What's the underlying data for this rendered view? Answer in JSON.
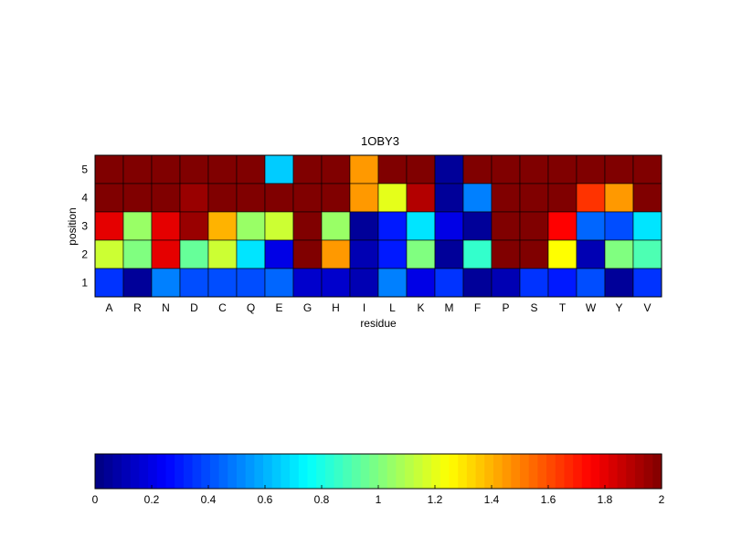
{
  "chart_data": {
    "type": "heatmap",
    "title": "1OBY3",
    "xlabel": "residue",
    "ylabel": "position",
    "x_categories": [
      "A",
      "R",
      "N",
      "D",
      "C",
      "Q",
      "E",
      "G",
      "H",
      "I",
      "L",
      "K",
      "M",
      "F",
      "P",
      "S",
      "T",
      "W",
      "Y",
      "V"
    ],
    "y_categories": [
      "5",
      "4",
      "3",
      "2",
      "1"
    ],
    "values": [
      [
        2.0,
        2.0,
        2.0,
        2.0,
        2.0,
        2.0,
        0.65,
        2.0,
        2.0,
        1.45,
        2.0,
        2.0,
        0.05,
        2.0,
        2.0,
        2.0,
        2.0,
        2.0,
        2.0,
        2.0
      ],
      [
        2.0,
        2.0,
        2.0,
        1.95,
        2.0,
        2.0,
        2.0,
        2.0,
        2.0,
        1.45,
        1.2,
        1.9,
        0.05,
        0.5,
        2.0,
        2.0,
        2.0,
        1.65,
        1.45,
        2.0
      ],
      [
        1.8,
        1.05,
        1.8,
        1.95,
        1.4,
        1.05,
        1.15,
        2.0,
        1.05,
        0.05,
        0.3,
        0.7,
        0.2,
        0.05,
        2.0,
        2.0,
        1.75,
        0.45,
        0.4,
        0.7
      ],
      [
        1.15,
        1.0,
        1.8,
        0.95,
        1.15,
        0.7,
        0.2,
        2.0,
        1.45,
        0.1,
        0.3,
        1.0,
        0.05,
        0.85,
        2.0,
        2.0,
        1.25,
        0.1,
        1.0,
        0.9
      ],
      [
        0.35,
        0.05,
        0.5,
        0.4,
        0.4,
        0.4,
        0.45,
        0.15,
        0.15,
        0.1,
        0.5,
        0.2,
        0.35,
        0.05,
        0.1,
        0.35,
        0.3,
        0.4,
        0.05,
        0.35
      ]
    ],
    "zlim": [
      0,
      2
    ],
    "colormap": "jet",
    "colorbar": {
      "orientation": "horizontal",
      "placement": "bottom",
      "ticks": [
        "0",
        "0.2",
        "0.4",
        "0.6",
        "0.8",
        "1",
        "1.2",
        "1.4",
        "1.6",
        "1.8",
        "2"
      ]
    },
    "grid": true
  }
}
